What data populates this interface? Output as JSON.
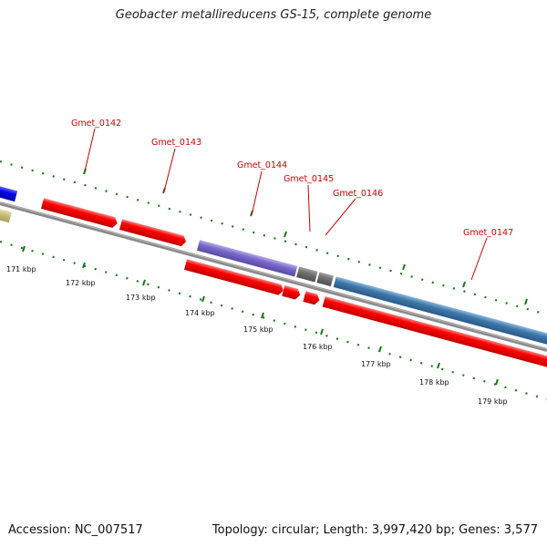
{
  "title": "Geobacter metallireducens GS-15, complete genome",
  "footer": {
    "accession": "Accession: NC_007517",
    "summary": "Topology: circular; Length: 3,997,420 bp; Genes: 3,577"
  },
  "colors": {
    "gene_red": "#ff0000",
    "purple": "#7a68c8",
    "gray": "#707070",
    "steelblue": "#3e78a8",
    "blue": "#0000ee",
    "khaki": "#c8c07a",
    "backbone": "#8a8a8a",
    "tick_green": "#1a7a1a",
    "label_red": "#d10000"
  },
  "scale": {
    "ticks": [
      {
        "label": "171 kbp"
      },
      {
        "label": "172 kbp"
      },
      {
        "label": "173 kbp"
      },
      {
        "label": "174 kbp"
      },
      {
        "label": "175 kbp"
      },
      {
        "label": "176 kbp"
      },
      {
        "label": "177 kbp"
      },
      {
        "label": "178 kbp"
      },
      {
        "label": "179 kbp"
      }
    ]
  },
  "gene_labels": [
    {
      "label": "Gmet_0142"
    },
    {
      "label": "Gmet_0143"
    },
    {
      "label": "Gmet_0144"
    },
    {
      "label": "Gmet_0145"
    },
    {
      "label": "Gmet_0146"
    },
    {
      "label": "Gmet_0147"
    }
  ]
}
